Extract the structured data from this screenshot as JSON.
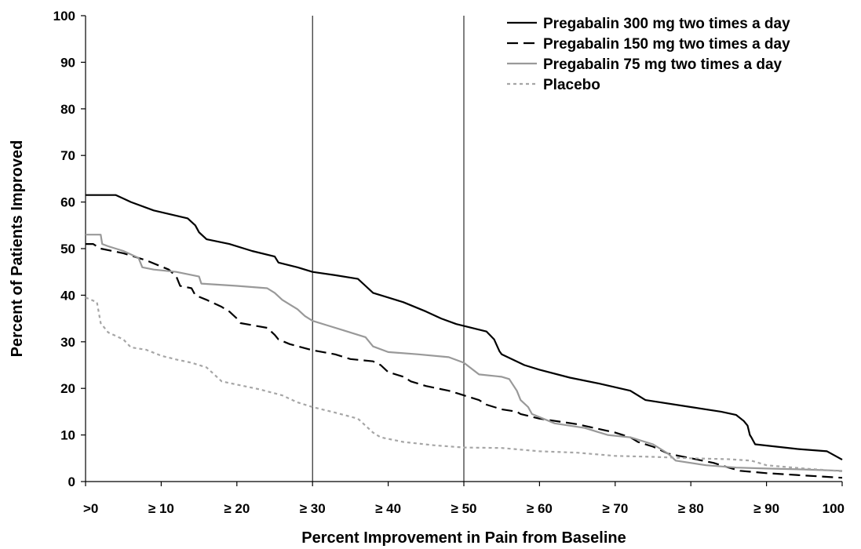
{
  "chart_data": {
    "type": "line",
    "title": "",
    "xlabel": "Percent Improvement in Pain from Baseline",
    "ylabel": "Percent of Patients Improved",
    "xlim": [
      0,
      100
    ],
    "ylim": [
      0,
      100
    ],
    "x_ticks": [
      0,
      10,
      20,
      30,
      40,
      50,
      60,
      70,
      80,
      90,
      100
    ],
    "x_tick_labels": [
      ">0",
      "≥ 10",
      "≥ 20",
      "≥ 30",
      "≥ 40",
      "≥ 50",
      "≥ 60",
      "≥ 70",
      "≥ 80",
      "≥ 90",
      "100"
    ],
    "y_ticks": [
      0,
      10,
      20,
      30,
      40,
      50,
      60,
      70,
      80,
      90,
      100
    ],
    "y_tick_labels": [
      "0",
      "10",
      "20",
      "30",
      "40",
      "50",
      "60",
      "70",
      "80",
      "90",
      "100"
    ],
    "reference_lines_x": [
      30,
      50
    ],
    "grid": false,
    "legend_position": "top-right",
    "series": [
      {
        "name": "Pregabalin 300 mg two times a day",
        "color": "#000000",
        "style": "solid",
        "points": [
          [
            0,
            61.5
          ],
          [
            4,
            61.5
          ],
          [
            6,
            60
          ],
          [
            9,
            58.2
          ],
          [
            13.5,
            56.5
          ],
          [
            14.5,
            55
          ],
          [
            15,
            53.5
          ],
          [
            16,
            52
          ],
          [
            19,
            51
          ],
          [
            22,
            49.5
          ],
          [
            25,
            48.3
          ],
          [
            25.5,
            47
          ],
          [
            28,
            46
          ],
          [
            30,
            45
          ],
          [
            33,
            44.3
          ],
          [
            36,
            43.5
          ],
          [
            37,
            42
          ],
          [
            38,
            40.5
          ],
          [
            42,
            38.5
          ],
          [
            45,
            36.5
          ],
          [
            47,
            35
          ],
          [
            49,
            33.8
          ],
          [
            53,
            32.2
          ],
          [
            54,
            30.5
          ],
          [
            54.7,
            28
          ],
          [
            55,
            27.3
          ],
          [
            58,
            25
          ],
          [
            60,
            24
          ],
          [
            64,
            22.3
          ],
          [
            68,
            21
          ],
          [
            72,
            19.5
          ],
          [
            73,
            18.5
          ],
          [
            74,
            17.5
          ],
          [
            80,
            16
          ],
          [
            84,
            15
          ],
          [
            86,
            14.3
          ],
          [
            87,
            13
          ],
          [
            87.5,
            12
          ],
          [
            87.8,
            10
          ],
          [
            88,
            9.5
          ],
          [
            88.5,
            8
          ],
          [
            94,
            7
          ],
          [
            98,
            6.5
          ],
          [
            100,
            4.7
          ]
        ]
      },
      {
        "name": "Pregabalin 150 mg two times a day",
        "color": "#000000",
        "style": "dashed",
        "points": [
          [
            0,
            51
          ],
          [
            1,
            51
          ],
          [
            2,
            50
          ],
          [
            5,
            49
          ],
          [
            8,
            47.5
          ],
          [
            11,
            45.5
          ],
          [
            12,
            44
          ],
          [
            12.5,
            42
          ],
          [
            14,
            41.5
          ],
          [
            14.5,
            40
          ],
          [
            16,
            39
          ],
          [
            18,
            37.5
          ],
          [
            19,
            36.5
          ],
          [
            20,
            35
          ],
          [
            20.5,
            34
          ],
          [
            24,
            33
          ],
          [
            25,
            31.5
          ],
          [
            25.5,
            30.5
          ],
          [
            27,
            29.5
          ],
          [
            30,
            28.2
          ],
          [
            33,
            27.3
          ],
          [
            35,
            26.3
          ],
          [
            38,
            25.8
          ],
          [
            39,
            25
          ],
          [
            40,
            23.5
          ],
          [
            42,
            22.5
          ],
          [
            43,
            21.5
          ],
          [
            45,
            20.5
          ],
          [
            48,
            19.5
          ],
          [
            49,
            19
          ],
          [
            50,
            18.5
          ],
          [
            52,
            17.5
          ],
          [
            53,
            16.5
          ],
          [
            55,
            15.5
          ],
          [
            57,
            15
          ],
          [
            57.5,
            14.5
          ],
          [
            60,
            13.5
          ],
          [
            65,
            12.3
          ],
          [
            70,
            10.5
          ],
          [
            72,
            9.5
          ],
          [
            73,
            8.5
          ],
          [
            75,
            7.5
          ],
          [
            77,
            6
          ],
          [
            80,
            5
          ],
          [
            83,
            4
          ],
          [
            85,
            3
          ],
          [
            86.5,
            2.3
          ],
          [
            90,
            1.8
          ],
          [
            100,
            0.8
          ]
        ]
      },
      {
        "name": "Pregabalin 75 mg two times a day",
        "color": "#999999",
        "style": "solid",
        "points": [
          [
            0,
            53
          ],
          [
            2,
            53
          ],
          [
            2.2,
            51
          ],
          [
            3,
            50.5
          ],
          [
            5,
            49.5
          ],
          [
            7,
            48
          ],
          [
            7.5,
            46
          ],
          [
            9,
            45.5
          ],
          [
            12,
            45
          ],
          [
            15,
            44
          ],
          [
            15.3,
            42.5
          ],
          [
            20,
            42
          ],
          [
            24,
            41.5
          ],
          [
            25,
            40.5
          ],
          [
            26,
            39
          ],
          [
            27,
            38
          ],
          [
            28,
            37
          ],
          [
            29,
            35.5
          ],
          [
            30,
            34.5
          ],
          [
            32,
            33.5
          ],
          [
            34,
            32.5
          ],
          [
            37,
            31
          ],
          [
            38,
            29
          ],
          [
            40,
            27.8
          ],
          [
            44,
            27.3
          ],
          [
            48,
            26.7
          ],
          [
            50,
            25.5
          ],
          [
            52,
            23
          ],
          [
            55,
            22.5
          ],
          [
            56,
            22
          ],
          [
            57,
            19.5
          ],
          [
            57.5,
            17.5
          ],
          [
            58.5,
            16
          ],
          [
            59,
            14.5
          ],
          [
            62,
            12.5
          ],
          [
            66,
            11.5
          ],
          [
            69,
            10
          ],
          [
            72,
            9.5
          ],
          [
            75,
            8
          ],
          [
            77,
            6
          ],
          [
            78,
            4.5
          ],
          [
            82,
            3.5
          ],
          [
            86,
            3
          ],
          [
            90,
            2.8
          ],
          [
            95,
            2.6
          ],
          [
            100,
            2.3
          ]
        ]
      },
      {
        "name": "Placebo",
        "color": "#a6a6a6",
        "style": "dotted",
        "points": [
          [
            0,
            39.5
          ],
          [
            1.5,
            38.5
          ],
          [
            2,
            34
          ],
          [
            3,
            32
          ],
          [
            5,
            30.5
          ],
          [
            6,
            28.8
          ],
          [
            8,
            28.3
          ],
          [
            10,
            27
          ],
          [
            12,
            26.2
          ],
          [
            14,
            25.5
          ],
          [
            16,
            24.5
          ],
          [
            17,
            23
          ],
          [
            18,
            21.5
          ],
          [
            20,
            20.8
          ],
          [
            23,
            19.8
          ],
          [
            26,
            18.5
          ],
          [
            28,
            17
          ],
          [
            30,
            16
          ],
          [
            33,
            14.8
          ],
          [
            36,
            13.5
          ],
          [
            37,
            12
          ],
          [
            38,
            10.5
          ],
          [
            39,
            9.5
          ],
          [
            42,
            8.5
          ],
          [
            46,
            7.8
          ],
          [
            50,
            7.3
          ],
          [
            55,
            7.2
          ],
          [
            60,
            6.5
          ],
          [
            65,
            6.2
          ],
          [
            70,
            5.5
          ],
          [
            75,
            5.3
          ],
          [
            80,
            5
          ],
          [
            85,
            4.8
          ],
          [
            88,
            4.5
          ],
          [
            90,
            3.5
          ],
          [
            95,
            2.8
          ],
          [
            100,
            2.2
          ]
        ]
      }
    ]
  }
}
